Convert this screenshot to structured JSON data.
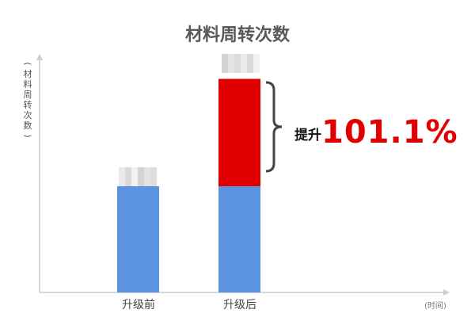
{
  "chart_data": {
    "type": "bar",
    "stacked": true,
    "title": "材料周转次数",
    "ylabel": "(材料周转次数)",
    "xlabel": "(时间)",
    "categories": [
      "升级前",
      "升级后"
    ],
    "series": [
      {
        "values": [
          100,
          100
        ],
        "color": "#5b93e0"
      },
      {
        "values": [
          0,
          101.1
        ],
        "color": "#e00000"
      }
    ],
    "annotation": {
      "prefix": "提升",
      "value": "101.1%",
      "color": "#e00000"
    },
    "grid": false,
    "axis_color": "#cccccc"
  }
}
